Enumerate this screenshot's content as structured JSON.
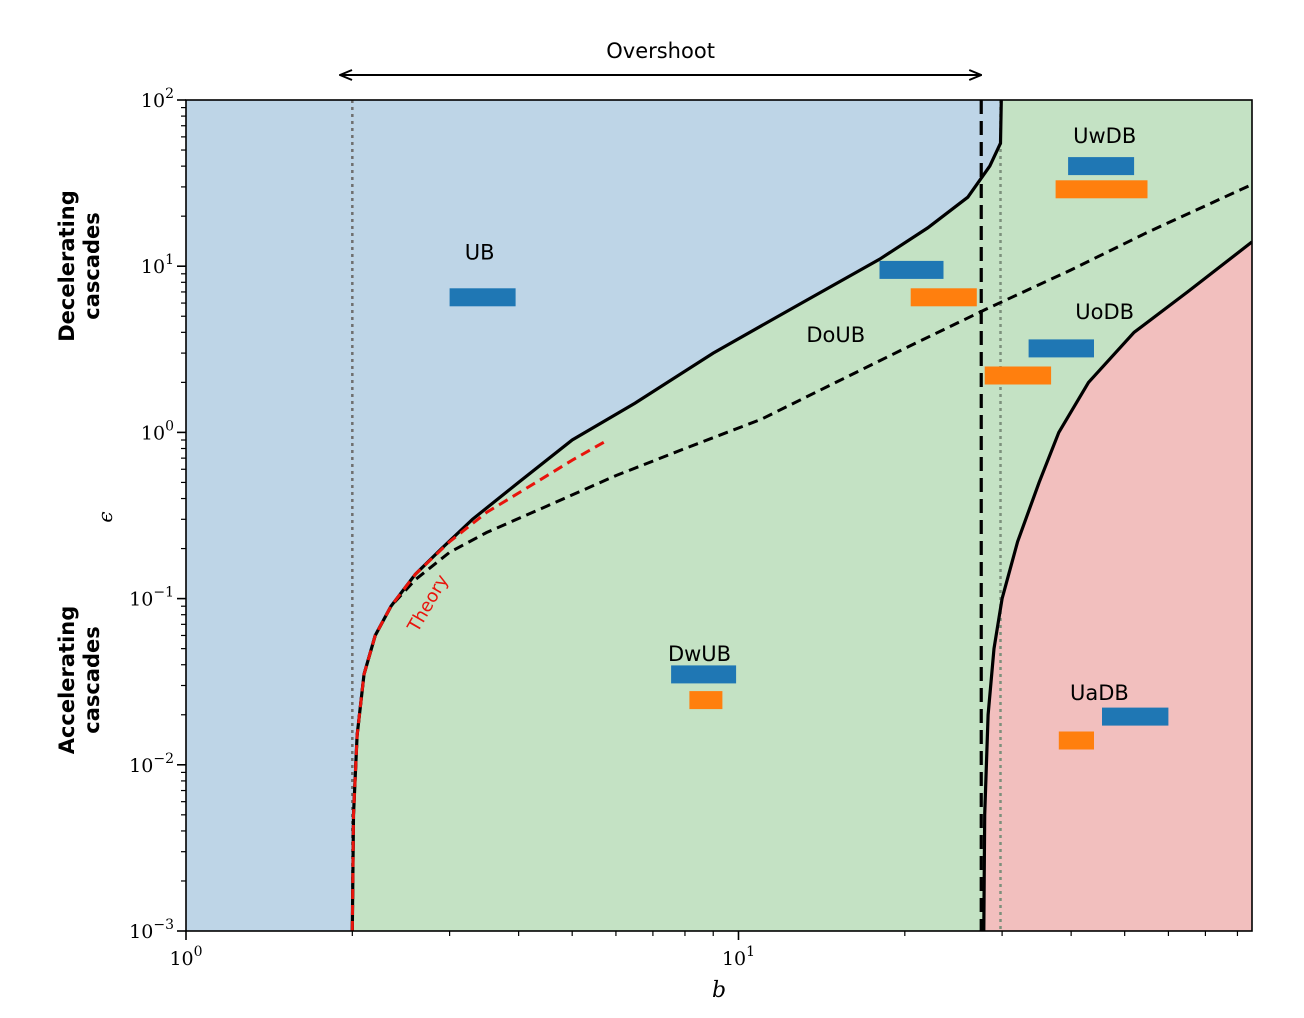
{
  "chart_data": {
    "type": "regime-diagram",
    "xscale": "log",
    "yscale": "log",
    "xlim": [
      1,
      85
    ],
    "ylim": [
      0.001,
      100
    ],
    "xlabel": "b",
    "ylabel": "ϵ",
    "x_ticks": [
      {
        "value": 1,
        "label": "10",
        "exp": "0"
      },
      {
        "value": 10,
        "label": "10",
        "exp": "1"
      }
    ],
    "y_ticks": [
      {
        "value": 0.001,
        "label": "10",
        "exp": "−3"
      },
      {
        "value": 0.01,
        "label": "10",
        "exp": "−2"
      },
      {
        "value": 0.1,
        "label": "10",
        "exp": "−1"
      },
      {
        "value": 1,
        "label": "10",
        "exp": "0"
      },
      {
        "value": 10,
        "label": "10",
        "exp": "1"
      },
      {
        "value": 100,
        "label": "10",
        "exp": "2"
      }
    ],
    "side_labels": {
      "decelerating": [
        "Decelerating",
        "cascades"
      ],
      "accelerating": [
        "Accelerating",
        "cascades"
      ]
    },
    "overshoot_label": "Overshoot",
    "overshoot_range": [
      1.9,
      27.5
    ],
    "regions": [
      {
        "name": "UB",
        "color": "#bed5e7"
      },
      {
        "name": "DwUB",
        "color": "#c4e2c4"
      },
      {
        "name": "UaDB",
        "color": "#f2bfbe"
      }
    ],
    "boundaries": {
      "ub_boundary": [
        {
          "b": 2.0,
          "eps": 0.001
        },
        {
          "b": 2.01,
          "eps": 0.005
        },
        {
          "b": 2.04,
          "eps": 0.015
        },
        {
          "b": 2.1,
          "eps": 0.035
        },
        {
          "b": 2.2,
          "eps": 0.06
        },
        {
          "b": 2.35,
          "eps": 0.09
        },
        {
          "b": 2.6,
          "eps": 0.14
        },
        {
          "b": 2.9,
          "eps": 0.2
        },
        {
          "b": 3.3,
          "eps": 0.3
        },
        {
          "b": 4.0,
          "eps": 0.5
        },
        {
          "b": 5.0,
          "eps": 0.9
        },
        {
          "b": 6.5,
          "eps": 1.5
        },
        {
          "b": 9.0,
          "eps": 3.0
        },
        {
          "b": 13.0,
          "eps": 6.0
        },
        {
          "b": 18.0,
          "eps": 11.0
        },
        {
          "b": 22.0,
          "eps": 17.0
        },
        {
          "b": 26.0,
          "eps": 26.0
        },
        {
          "b": 28.5,
          "eps": 40.0
        },
        {
          "b": 29.8,
          "eps": 55.0
        },
        {
          "b": 29.9,
          "eps": 100.0
        }
      ],
      "uadb_boundary": [
        {
          "b": 27.8,
          "eps": 0.001
        },
        {
          "b": 27.9,
          "eps": 0.005
        },
        {
          "b": 28.3,
          "eps": 0.02
        },
        {
          "b": 29.0,
          "eps": 0.05
        },
        {
          "b": 30.0,
          "eps": 0.1
        },
        {
          "b": 32.0,
          "eps": 0.22
        },
        {
          "b": 35.0,
          "eps": 0.5
        },
        {
          "b": 38.0,
          "eps": 1.0
        },
        {
          "b": 43.0,
          "eps": 2.0
        },
        {
          "b": 52.0,
          "eps": 4.0
        },
        {
          "b": 65.0,
          "eps": 7.0
        },
        {
          "b": 85.0,
          "eps": 14.0
        }
      ],
      "dashed_curve": [
        {
          "b": 2.0,
          "eps": 0.001
        },
        {
          "b": 2.01,
          "eps": 0.005
        },
        {
          "b": 2.04,
          "eps": 0.015
        },
        {
          "b": 2.1,
          "eps": 0.035
        },
        {
          "b": 2.2,
          "eps": 0.06
        },
        {
          "b": 2.35,
          "eps": 0.09
        },
        {
          "b": 2.6,
          "eps": 0.13
        },
        {
          "b": 3.0,
          "eps": 0.19
        },
        {
          "b": 3.5,
          "eps": 0.25
        },
        {
          "b": 4.5,
          "eps": 0.36
        },
        {
          "b": 6.0,
          "eps": 0.55
        },
        {
          "b": 8.0,
          "eps": 0.8
        },
        {
          "b": 11.0,
          "eps": 1.2
        },
        {
          "b": 15.0,
          "eps": 2.0
        },
        {
          "b": 20.0,
          "eps": 3.2
        },
        {
          "b": 28.0,
          "eps": 5.5
        },
        {
          "b": 40.0,
          "eps": 9.5
        },
        {
          "b": 55.0,
          "eps": 16.0
        },
        {
          "b": 85.0,
          "eps": 31.0
        }
      ],
      "theory_curve": [
        {
          "b": 2.0,
          "eps": 0.001
        },
        {
          "b": 2.01,
          "eps": 0.005
        },
        {
          "b": 2.04,
          "eps": 0.015
        },
        {
          "b": 2.1,
          "eps": 0.035
        },
        {
          "b": 2.2,
          "eps": 0.06
        },
        {
          "b": 2.35,
          "eps": 0.09
        },
        {
          "b": 2.6,
          "eps": 0.14
        },
        {
          "b": 3.0,
          "eps": 0.22
        },
        {
          "b": 3.5,
          "eps": 0.33
        },
        {
          "b": 4.3,
          "eps": 0.5
        },
        {
          "b": 5.0,
          "eps": 0.68
        },
        {
          "b": 5.8,
          "eps": 0.9
        }
      ],
      "dotted_lines_b": [
        2.0,
        29.8
      ],
      "dashed_vertical_b": 27.5
    },
    "annotations": [
      {
        "text": "UB",
        "b": 3.4,
        "eps": 11.0
      },
      {
        "text": "DwUB",
        "b": 8.5,
        "eps": 0.042
      },
      {
        "text": "DoUB",
        "b": 15.0,
        "eps": 3.5
      },
      {
        "text": "UwDB",
        "b": 46.0,
        "eps": 55.0
      },
      {
        "text": "UoDB",
        "b": 46.0,
        "eps": 4.8
      },
      {
        "text": "UaDB",
        "b": 45.0,
        "eps": 0.0245
      },
      {
        "text": "Theory",
        "b": 2.8,
        "eps": 0.09,
        "rotation": -60,
        "color": "#e8140c"
      }
    ],
    "series": [
      {
        "name": "blue",
        "color": "#1f77b4",
        "ranges": [
          {
            "regime": "UB",
            "b_min": 3.0,
            "b_max": 3.95,
            "eps": 6.5
          },
          {
            "regime": "DwUB",
            "b_min": 7.55,
            "b_max": 9.9,
            "eps": 0.035
          },
          {
            "regime": "DoUB",
            "b_min": 18.0,
            "b_max": 23.5,
            "eps": 9.5
          },
          {
            "regime": "UwDB",
            "b_min": 39.5,
            "b_max": 52.0,
            "eps": 40.0
          },
          {
            "regime": "UoDB",
            "b_min": 33.5,
            "b_max": 44.0,
            "eps": 3.2
          },
          {
            "regime": "UaDB",
            "b_min": 45.5,
            "b_max": 60.0,
            "eps": 0.0195
          }
        ]
      },
      {
        "name": "orange",
        "color": "#ff7f0e",
        "ranges": [
          {
            "regime": "DwUB",
            "b_min": 8.15,
            "b_max": 9.35,
            "eps": 0.0245
          },
          {
            "regime": "DoUB",
            "b_min": 20.5,
            "b_max": 27.0,
            "eps": 6.5
          },
          {
            "regime": "UwDB",
            "b_min": 37.5,
            "b_max": 55.0,
            "eps": 29.0
          },
          {
            "regime": "UoDB",
            "b_min": 27.9,
            "b_max": 36.8,
            "eps": 2.2
          },
          {
            "regime": "UaDB",
            "b_min": 38.0,
            "b_max": 44.0,
            "eps": 0.014
          }
        ]
      }
    ]
  }
}
